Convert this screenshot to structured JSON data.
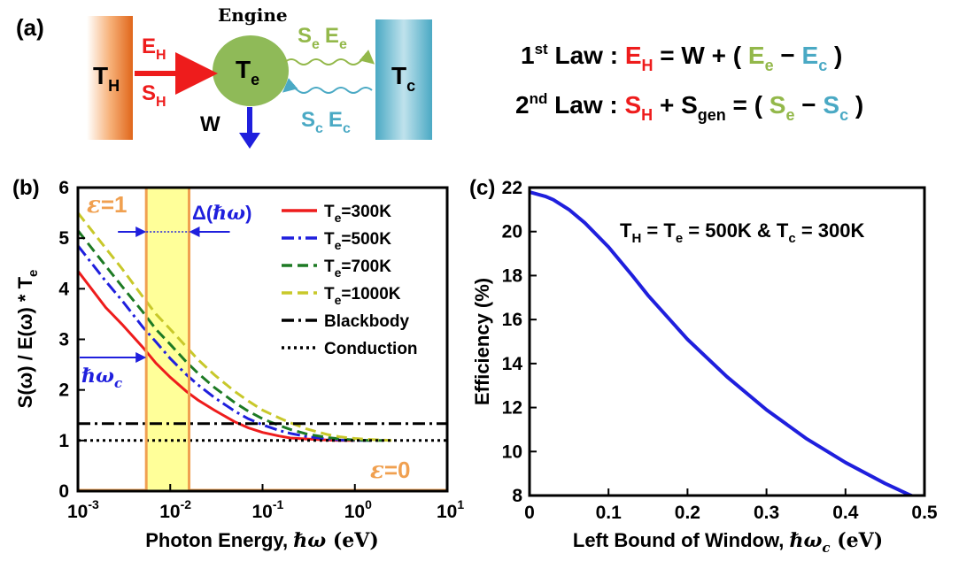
{
  "panel_a": {
    "label": "(a)",
    "hot_reservoir": {
      "main": "T",
      "sub": "H"
    },
    "engine_title": "Engine",
    "engine": {
      "main": "T",
      "sub": "e"
    },
    "cold_reservoir": {
      "main": "T",
      "sub": "c"
    },
    "heat_in": {
      "main": "E",
      "sub": "H"
    },
    "entropy_in": {
      "main": "S",
      "sub": "H"
    },
    "work": "W",
    "emitted": {
      "s_main": "S",
      "s_sub": "e",
      "e_main": "E",
      "e_sub": "e"
    },
    "absorbed": {
      "s_main": "S",
      "s_sub": "c",
      "e_main": "E",
      "e_sub": "c"
    },
    "law1": {
      "ord": "1",
      "sup": "st",
      "text": " Law : ",
      "eh_main": "E",
      "eh_sub": "H",
      "mid": " = W + ( ",
      "ee_main": "E",
      "ee_sub": "e",
      "minus": " − ",
      "ec_main": "E",
      "ec_sub": "c",
      "end": " )"
    },
    "law2": {
      "ord": "2",
      "sup": "nd",
      "text": " Law : ",
      "sh_main": "S",
      "sh_sub": "H",
      "plus": " + S",
      "gen_sub": "gen",
      "mid": " = ( ",
      "se_main": "S",
      "se_sub": "e",
      "minus": " − ",
      "sc_main": "S",
      "sc_sub": "c",
      "end": " )"
    }
  },
  "colors": {
    "red": "#ee1c1c",
    "blue": "#1f1fdd",
    "green": "#1d7a24",
    "yellow": "#c8c82a",
    "light_green": "#93b84a",
    "cyan": "#4aa9c4",
    "orange": "#f0a050",
    "window_fill": "#ffff99",
    "engine_fill": "#8fba58"
  },
  "chart_data": [
    {
      "panel": "(b)",
      "type": "line",
      "xscale": "log",
      "xlim": [
        0.001,
        10
      ],
      "ylim": [
        0,
        6
      ],
      "xticks": [
        {
          "base": "10",
          "exp": "-3",
          "value": 0.001
        },
        {
          "base": "10",
          "exp": "-2",
          "value": 0.01
        },
        {
          "base": "10",
          "exp": "-1",
          "value": 0.1
        },
        {
          "base": "10",
          "exp": "0",
          "value": 1
        },
        {
          "base": "10",
          "exp": "1",
          "value": 10
        }
      ],
      "yticks": [
        "0",
        "1",
        "2",
        "3",
        "4",
        "5",
        "6"
      ],
      "xlabel": {
        "text": "Photon Energy, ",
        "sym": "ℏω",
        "unit": " (eV)"
      },
      "ylabel": {
        "pre": "S(ω) / E(ω) * T",
        "sub": "e"
      },
      "series": [
        {
          "name_main": "T",
          "name_sub": "e",
          "name_rest": "=300K",
          "color": "#ee1c1c",
          "dash": "solid",
          "x": [
            0.001,
            0.002,
            0.003,
            0.005,
            0.007,
            0.01,
            0.015,
            0.02,
            0.03,
            0.05,
            0.07,
            0.1,
            0.15,
            0.2,
            0.3,
            0.5,
            0.7,
            1.0
          ],
          "y": [
            4.35,
            3.63,
            3.3,
            2.85,
            2.53,
            2.25,
            1.97,
            1.8,
            1.6,
            1.37,
            1.25,
            1.16,
            1.09,
            1.05,
            1.03,
            1.01,
            1.0,
            1.0
          ]
        },
        {
          "name_main": "T",
          "name_sub": "e",
          "name_rest": "=500K",
          "color": "#1f1fdd",
          "dash": "dashdot",
          "x": [
            0.001,
            0.002,
            0.003,
            0.005,
            0.007,
            0.01,
            0.015,
            0.02,
            0.03,
            0.05,
            0.07,
            0.1,
            0.15,
            0.2,
            0.3,
            0.5,
            0.7,
            1.0,
            1.5
          ],
          "y": [
            4.85,
            4.15,
            3.77,
            3.25,
            2.95,
            2.62,
            2.3,
            2.1,
            1.85,
            1.58,
            1.43,
            1.31,
            1.2,
            1.14,
            1.08,
            1.03,
            1.01,
            1.0,
            1.0
          ]
        },
        {
          "name_main": "T",
          "name_sub": "e",
          "name_rest": "=700K",
          "color": "#1d7a24",
          "dash": "dashed",
          "x": [
            0.001,
            0.002,
            0.003,
            0.005,
            0.007,
            0.01,
            0.015,
            0.02,
            0.03,
            0.05,
            0.07,
            0.1,
            0.15,
            0.2,
            0.3,
            0.5,
            0.7,
            1.0,
            1.5,
            2.0
          ],
          "y": [
            5.15,
            4.45,
            4.05,
            3.55,
            3.2,
            2.9,
            2.55,
            2.33,
            2.05,
            1.75,
            1.58,
            1.43,
            1.3,
            1.22,
            1.13,
            1.06,
            1.03,
            1.01,
            1.0,
            1.0
          ]
        },
        {
          "name_main": "T",
          "name_sub": "e",
          "name_rest": "=1000K",
          "color": "#c8c82a",
          "dash": "dashed",
          "x": [
            0.001,
            0.002,
            0.003,
            0.005,
            0.007,
            0.01,
            0.015,
            0.02,
            0.03,
            0.05,
            0.07,
            0.1,
            0.15,
            0.2,
            0.3,
            0.5,
            0.7,
            1.0,
            1.5,
            2.5
          ],
          "y": [
            5.5,
            4.8,
            4.4,
            3.85,
            3.5,
            3.2,
            2.85,
            2.6,
            2.3,
            1.97,
            1.78,
            1.6,
            1.45,
            1.35,
            1.23,
            1.12,
            1.07,
            1.04,
            1.02,
            1.0
          ]
        },
        {
          "name_main": "Blackbody",
          "name_sub": "",
          "name_rest": "",
          "color": "#000000",
          "dash": "dashdot",
          "x": [
            0.001,
            10
          ],
          "y": [
            1.333,
            1.333
          ]
        },
        {
          "name_main": "Conduction",
          "name_sub": "",
          "name_rest": "",
          "color": "#000000",
          "dash": "dotted",
          "x": [
            0.001,
            10
          ],
          "y": [
            1.0,
            1.0
          ]
        }
      ],
      "window": {
        "left": 0.0055,
        "right": 0.016
      },
      "annotations": {
        "eps1": {
          "sym": "ε",
          "rest": "=1"
        },
        "eps0": {
          "sym": "ε",
          "rest": "=0"
        },
        "delta": {
          "pre": "Δ(",
          "sym": "ℏω",
          "end": ")"
        },
        "hw_c": {
          "sym": "ℏω",
          "sub": "c"
        }
      }
    },
    {
      "panel": "(c)",
      "type": "line",
      "xlim": [
        0,
        0.5
      ],
      "ylim": [
        8,
        22
      ],
      "xticks": [
        "0",
        "0.1",
        "0.2",
        "0.3",
        "0.4",
        "0.5"
      ],
      "yticks": [
        "8",
        "10",
        "12",
        "14",
        "16",
        "18",
        "20",
        "22"
      ],
      "xlabel": {
        "text": "Left Bound of Window, ",
        "sym": "ℏω",
        "sub": "c",
        "unit": " (eV)"
      },
      "ylabel": "Efficiency (%)",
      "annotation": {
        "t1_main": "T",
        "t1_sub": "H",
        "eq1": " = T",
        "t2_sub": "e",
        "mid": " = 500K & T",
        "t3_sub": "c",
        "end": " = 300K"
      },
      "series": [
        {
          "color": "#1f1fdd",
          "x": [
            0.0,
            0.02,
            0.03,
            0.05,
            0.07,
            0.1,
            0.13,
            0.15,
            0.2,
            0.25,
            0.3,
            0.35,
            0.4,
            0.45,
            0.48,
            0.49
          ],
          "y": [
            21.8,
            21.6,
            21.45,
            21.0,
            20.4,
            19.3,
            18.0,
            17.1,
            15.1,
            13.4,
            11.9,
            10.6,
            9.5,
            8.55,
            8.05,
            7.9
          ]
        }
      ]
    }
  ]
}
